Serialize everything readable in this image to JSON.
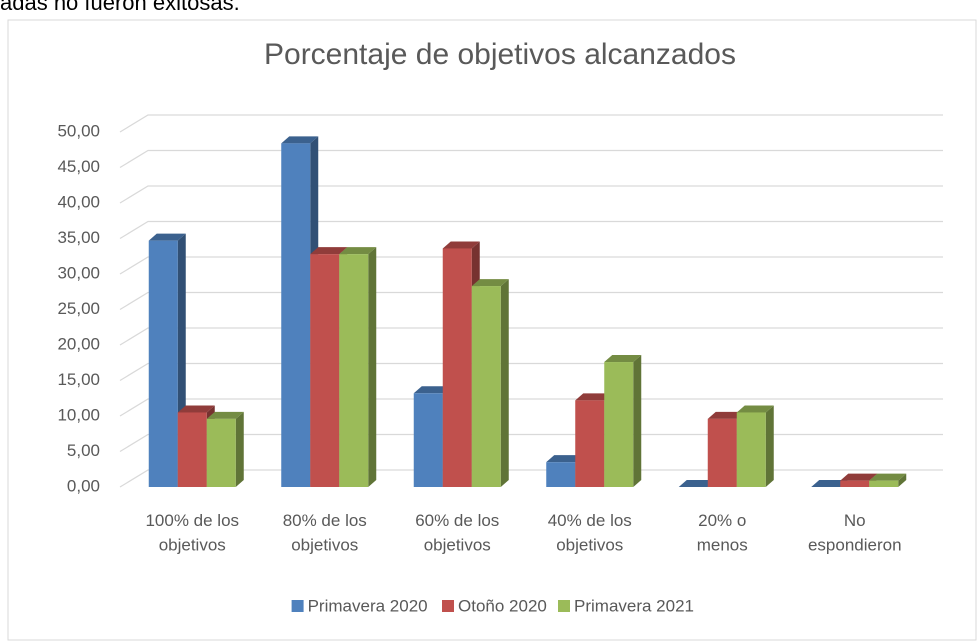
{
  "caption": "adas no fueron exitosas.",
  "chart_data": {
    "type": "bar3d",
    "title": "Porcentaje de objetivos alcanzados",
    "categories": [
      "100% de los\nobjetivos",
      "80% de los\nobjetivos",
      "60% de los\nobjetivos",
      "40% de los\nobjetivos",
      "20% o\nmenos",
      "No\nespondieron"
    ],
    "series": [
      {
        "name": "Primavera 2020",
        "color": "#4f81bd",
        "values": [
          34.7,
          48.4,
          13.2,
          3.5,
          0,
          0
        ]
      },
      {
        "name": "Otoño 2020",
        "color": "#c0504d",
        "values": [
          10.5,
          32.8,
          33.6,
          12.2,
          9.6,
          0.9
        ]
      },
      {
        "name": "Primavera 2021",
        "color": "#9bbb59",
        "values": [
          9.6,
          32.8,
          28.3,
          17.6,
          10.5,
          0.9
        ]
      }
    ],
    "ylim": [
      0,
      50
    ],
    "yticks": [
      {
        "value": 0,
        "label": "0,00"
      },
      {
        "value": 5,
        "label": "5,00"
      },
      {
        "value": 10,
        "label": "10,00"
      },
      {
        "value": 15,
        "label": "15,00"
      },
      {
        "value": 20,
        "label": "20,00"
      },
      {
        "value": 25,
        "label": "25,00"
      },
      {
        "value": 30,
        "label": "30,00"
      },
      {
        "value": 35,
        "label": "35,00"
      },
      {
        "value": 40,
        "label": "40,00"
      },
      {
        "value": 45,
        "label": "45,00"
      },
      {
        "value": 50,
        "label": "50,00"
      }
    ],
    "grid": true,
    "legend": "bottom"
  }
}
